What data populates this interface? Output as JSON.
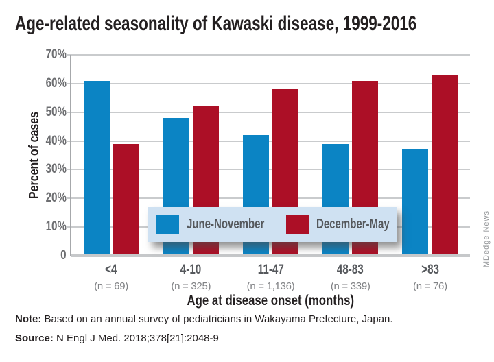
{
  "page": {
    "title": "Age-related seasonality of Kawaski disease, 1999-2016",
    "watermark": "MDedge News",
    "note_label": "Note:",
    "note_text": " Based on an annual survey of pediatricians in Wakayama Prefecture, Japan.",
    "source_label": "Source:",
    "source_text": " N Engl J Med. 2018;378[21]:2048-9"
  },
  "chart_data": {
    "type": "bar",
    "title": "Age-related seasonality of Kawaski disease, 1999-2016",
    "xlabel": "Age at disease onset (months)",
    "ylabel": "Percent of cases",
    "ylim": [
      0,
      70
    ],
    "grid": true,
    "legend_position": "overlay-bottom-center",
    "yticks": [
      {
        "label": "70%",
        "value": 70
      },
      {
        "label": "60%",
        "value": 60
      },
      {
        "label": "50%",
        "value": 50
      },
      {
        "label": "40%",
        "value": 40
      },
      {
        "label": "30%",
        "value": 30
      },
      {
        "label": "20%",
        "value": 20
      },
      {
        "label": "10%",
        "value": 10
      },
      {
        "label": "0",
        "value": 0
      }
    ],
    "categories": [
      "<4",
      "4-10",
      "11-47",
      "48-83",
      ">83"
    ],
    "subcategories": [
      "(n = 69)",
      "(n = 325)",
      "(n = 1,136)",
      "(n = 339)",
      "(n = 76)"
    ],
    "series": [
      {
        "name": "June-November",
        "color": "#0b84c4",
        "values": [
          61,
          48,
          42,
          39,
          37
        ]
      },
      {
        "name": "December-May",
        "color": "#ac0f26",
        "values": [
          39,
          52,
          58,
          61,
          63
        ]
      }
    ]
  },
  "colors": {
    "blue": "#0b84c4",
    "red": "#ac0f26",
    "legend_bg": "#cfe1f2",
    "gridline": "#c9cbcd",
    "axis": "#a6a8ab",
    "tick_label": "#6d6e71",
    "category_label": "#55585c",
    "n_label": "#808285",
    "text": "#231f20",
    "watermark": "#929497"
  }
}
